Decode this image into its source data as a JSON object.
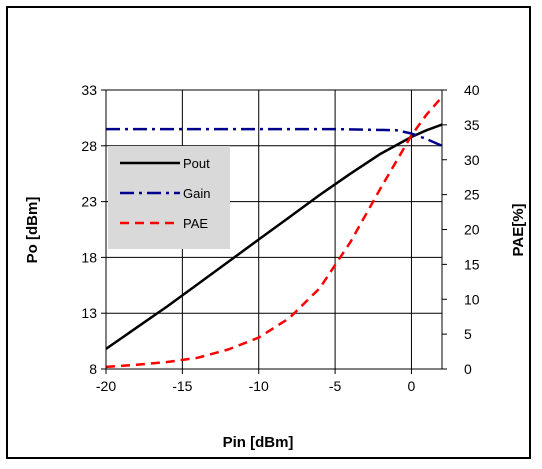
{
  "chart_data": {
    "type": "line",
    "title": "",
    "xlabel": "Pin [dBm]",
    "ylabel": "Po [dBm]",
    "y2label": "PAE[%]",
    "xlim": [
      -20,
      2
    ],
    "ylim": [
      8,
      33
    ],
    "y2lim": [
      0,
      40
    ],
    "x_ticks": [
      -20,
      -15,
      -10,
      -5,
      0
    ],
    "y_ticks": [
      8,
      13,
      18,
      23,
      28,
      33
    ],
    "y2_ticks": [
      0,
      5,
      10,
      15,
      20,
      25,
      30,
      35,
      40
    ],
    "grid": true,
    "legend_position": "upper-left",
    "series": [
      {
        "name": "Pout",
        "axis": "left",
        "color": "#000000",
        "dash": "solid",
        "x": [
          -20,
          -18,
          -16,
          -14,
          -12,
          -10,
          -8,
          -6,
          -4,
          -2,
          0,
          1,
          2
        ],
        "y": [
          9.8,
          11.7,
          13.6,
          15.6,
          17.6,
          19.6,
          21.6,
          23.6,
          25.5,
          27.3,
          28.8,
          29.4,
          29.9
        ]
      },
      {
        "name": "Gain",
        "axis": "left",
        "color": "#00008b",
        "dash": "dashdot",
        "x": [
          -20,
          -15,
          -10,
          -5,
          -1,
          0,
          1,
          2
        ],
        "y": [
          29.5,
          29.5,
          29.5,
          29.5,
          29.4,
          29.1,
          28.6,
          28.0
        ]
      },
      {
        "name": "PAE",
        "axis": "right",
        "color": "#ff0000",
        "dash": "dashed",
        "x": [
          -20,
          -18,
          -16,
          -14,
          -12,
          -10,
          -8,
          -6,
          -4,
          -2,
          0,
          1,
          2
        ],
        "y": [
          0.3,
          0.6,
          1.0,
          1.6,
          2.8,
          4.5,
          7.3,
          11.6,
          18.2,
          26.0,
          33.5,
          36.5,
          39.0
        ]
      }
    ]
  }
}
